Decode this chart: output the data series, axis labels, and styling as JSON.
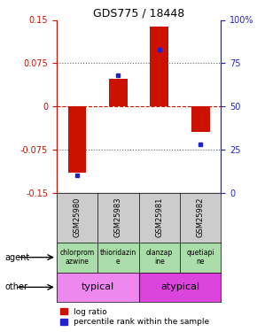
{
  "title": "GDS775 / 18448",
  "samples": [
    "GSM25980",
    "GSM25983",
    "GSM25981",
    "GSM25982"
  ],
  "log_ratios": [
    -0.115,
    0.048,
    0.138,
    -0.045
  ],
  "percentile_ranks": [
    10,
    68,
    83,
    28
  ],
  "ylim": [
    -0.15,
    0.15
  ],
  "yticks_left": [
    -0.15,
    -0.075,
    0,
    0.075,
    0.15
  ],
  "yticks_right": [
    0,
    25,
    50,
    75,
    100
  ],
  "yticks_right_labels": [
    "0",
    "25",
    "50",
    "75",
    "100%"
  ],
  "bar_color": "#cc1100",
  "dot_color": "#2222cc",
  "agent_labels": [
    "chlorprom\nazwine",
    "thioridazin\ne",
    "olanzap\nine",
    "quetiapi\nne"
  ],
  "agent_color": "#aaddaa",
  "typical_color": "#ee88ee",
  "atypical_color": "#dd44dd",
  "typical_label": "typical",
  "atypical_label": "atypical",
  "background_color": "#ffffff",
  "grid_color": "#666666",
  "zero_line_color": "#cc1100",
  "sample_bg_color": "#cccccc",
  "legend_log_ratio": "log ratio",
  "legend_percentile": "percentile rank within the sample"
}
